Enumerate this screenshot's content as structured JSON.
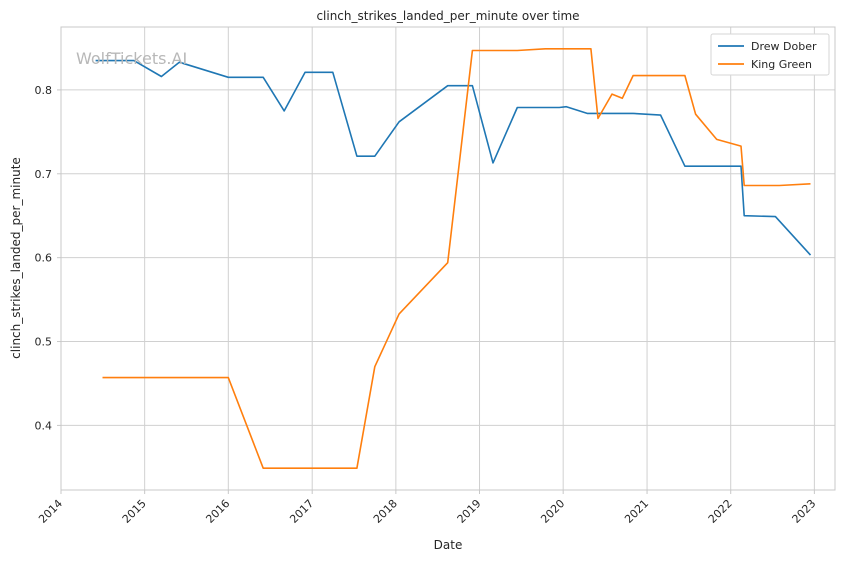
{
  "chart_data": {
    "type": "line",
    "title": "clinch_strikes_landed_per_minute over time",
    "xlabel": "Date",
    "ylabel": "clinch_strikes_landed_per_minute",
    "watermark": "WolfTickets.AI",
    "x_ticks": [
      "2014",
      "2015",
      "2016",
      "2017",
      "2018",
      "2019",
      "2020",
      "2021",
      "2022",
      "2023"
    ],
    "y_ticks": [
      "0.4",
      "0.5",
      "0.6",
      "0.7",
      "0.8"
    ],
    "xlim": [
      "2014-01-01",
      "2023-04-01"
    ],
    "ylim": [
      0.323,
      0.875
    ],
    "grid": true,
    "legend_position": "top-right",
    "colors": {
      "Drew Dober": "#1f77b4",
      "King Green": "#ff7f0e",
      "grid": "#d0d0d0",
      "axes": "#c8c8c8"
    },
    "series": [
      {
        "name": "Drew Dober",
        "points": [
          [
            "2014-06-01",
            0.835
          ],
          [
            "2014-11-15",
            0.835
          ],
          [
            "2015-03-15",
            0.816
          ],
          [
            "2015-06-01",
            0.833
          ],
          [
            "2016-01-01",
            0.815
          ],
          [
            "2016-06-01",
            0.815
          ],
          [
            "2016-09-01",
            0.775
          ],
          [
            "2016-12-01",
            0.821
          ],
          [
            "2017-04-01",
            0.821
          ],
          [
            "2017-07-15",
            0.721
          ],
          [
            "2017-10-01",
            0.721
          ],
          [
            "2018-01-15",
            0.762
          ],
          [
            "2018-08-15",
            0.805
          ],
          [
            "2018-12-01",
            0.805
          ],
          [
            "2019-03-01",
            0.713
          ],
          [
            "2019-06-15",
            0.779
          ],
          [
            "2019-12-15",
            0.779
          ],
          [
            "2020-01-15",
            0.78
          ],
          [
            "2020-04-15",
            0.772
          ],
          [
            "2020-11-01",
            0.772
          ],
          [
            "2021-03-01",
            0.77
          ],
          [
            "2021-06-15",
            0.709
          ],
          [
            "2022-02-15",
            0.709
          ],
          [
            "2022-03-01",
            0.65
          ],
          [
            "2022-07-15",
            0.649
          ],
          [
            "2022-12-15",
            0.603
          ]
        ]
      },
      {
        "name": "King Green",
        "points": [
          [
            "2014-07-01",
            0.457
          ],
          [
            "2016-01-01",
            0.457
          ],
          [
            "2016-06-01",
            0.349
          ],
          [
            "2017-07-15",
            0.349
          ],
          [
            "2017-10-01",
            0.47
          ],
          [
            "2018-01-15",
            0.533
          ],
          [
            "2018-08-15",
            0.594
          ],
          [
            "2018-12-01",
            0.847
          ],
          [
            "2019-06-15",
            0.847
          ],
          [
            "2019-10-15",
            0.849
          ],
          [
            "2020-05-01",
            0.849
          ],
          [
            "2020-06-01",
            0.766
          ],
          [
            "2020-08-01",
            0.795
          ],
          [
            "2020-09-15",
            0.79
          ],
          [
            "2020-11-01",
            0.817
          ],
          [
            "2021-06-15",
            0.817
          ],
          [
            "2021-08-01",
            0.771
          ],
          [
            "2021-11-01",
            0.741
          ],
          [
            "2022-02-15",
            0.733
          ],
          [
            "2022-03-01",
            0.686
          ],
          [
            "2022-08-01",
            0.686
          ],
          [
            "2022-12-15",
            0.688
          ]
        ]
      }
    ]
  }
}
